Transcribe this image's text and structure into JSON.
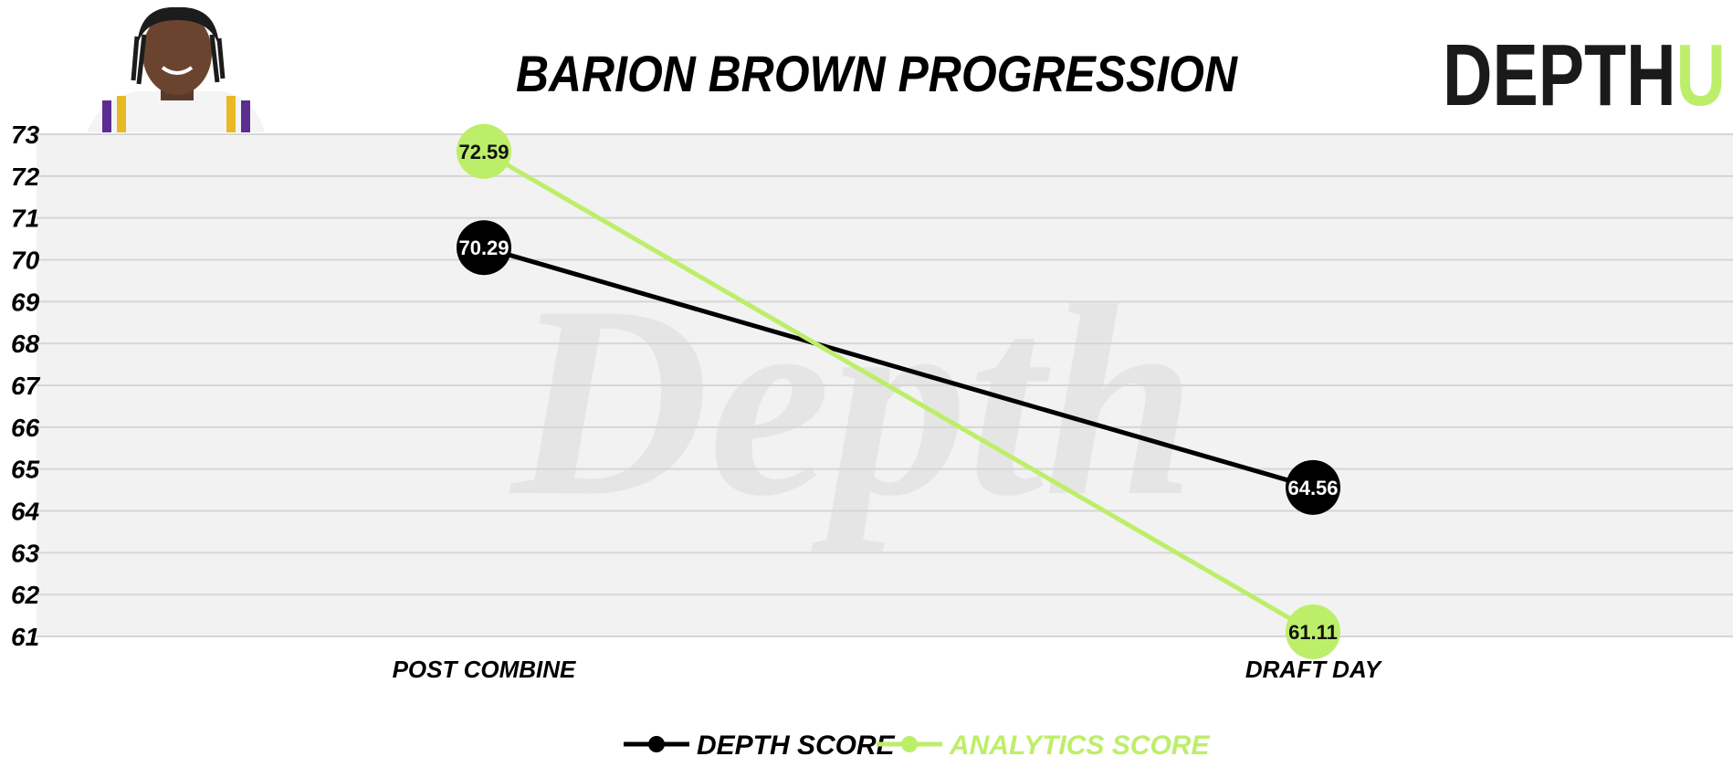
{
  "header": {
    "title": "BARION BROWN PROGRESSION",
    "logo_main": "DEPTH",
    "logo_accent": "U",
    "watermark": "Depth"
  },
  "colors": {
    "depth": "#000000",
    "analytics": "#bdee6a",
    "plot_bg": "#f2f2f2",
    "grid": "#d6d6d6",
    "watermark": "#e4e4e4"
  },
  "chart_data": {
    "type": "line",
    "title": "BARION BROWN PROGRESSION",
    "categories": [
      "POST COMBINE",
      "DRAFT DAY"
    ],
    "series": [
      {
        "name": "DEPTH SCORE",
        "values": [
          70.29,
          64.56
        ],
        "labels": [
          "70.29",
          "64.56"
        ]
      },
      {
        "name": "ANALYTICS SCORE",
        "values": [
          72.59,
          61.11
        ],
        "labels": [
          "72.59",
          "61.11"
        ]
      }
    ],
    "ylim": [
      61,
      73
    ],
    "yticks": [
      "61",
      "62",
      "63",
      "64",
      "65",
      "66",
      "67",
      "68",
      "69",
      "70",
      "71",
      "72",
      "73"
    ],
    "grid": true,
    "legend_position": "bottom-center"
  }
}
